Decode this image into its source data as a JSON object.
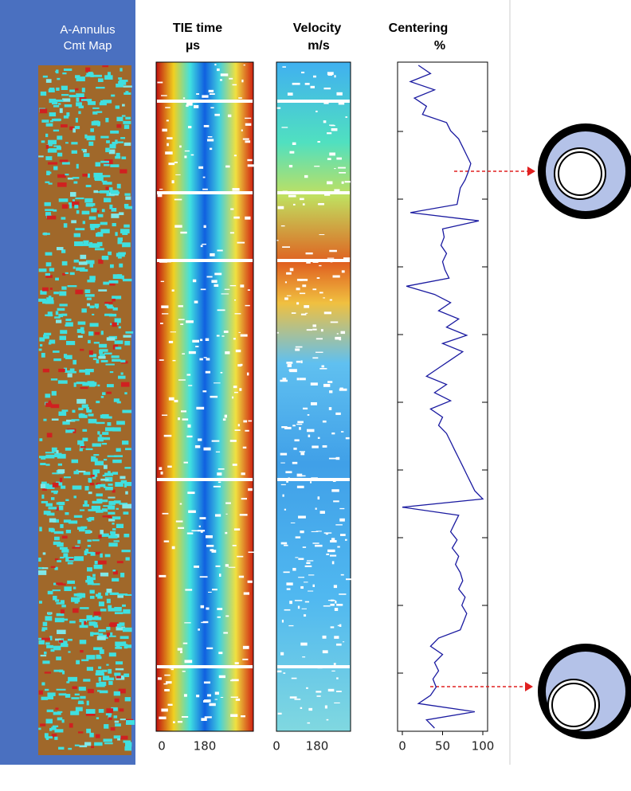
{
  "map_track": {
    "title_line1": "A-Annulus",
    "title_line2": "Cmt Map"
  },
  "tie_track": {
    "title": "TIE time",
    "unit": "µs",
    "tick_labels": [
      "0",
      "180"
    ]
  },
  "velocity_track": {
    "title": "Velocity",
    "unit": "m/s",
    "tick_labels": [
      "0",
      "180"
    ]
  },
  "centering": {
    "type": "line",
    "title": "Centering",
    "unit": "%",
    "color": "#1a1aa0",
    "xlim": [
      0,
      100
    ],
    "xticks": [
      0,
      50,
      100
    ],
    "values": [
      20,
      35,
      10,
      40,
      15,
      30,
      25,
      55,
      60,
      70,
      75,
      80,
      85,
      82,
      78,
      72,
      70,
      68,
      10,
      95,
      50,
      52,
      48,
      55,
      50,
      53,
      58,
      5,
      40,
      60,
      45,
      70,
      55,
      80,
      50,
      75,
      60,
      45,
      30,
      55,
      40,
      60,
      35,
      50,
      45,
      55,
      60,
      65,
      70,
      75,
      80,
      85,
      90,
      100,
      0,
      70,
      65,
      60,
      68,
      62,
      70,
      66,
      72,
      75,
      70,
      78,
      74,
      80,
      76,
      72,
      45,
      35,
      50,
      40,
      45,
      38,
      42,
      35,
      20,
      90,
      30,
      40
    ]
  }
}
